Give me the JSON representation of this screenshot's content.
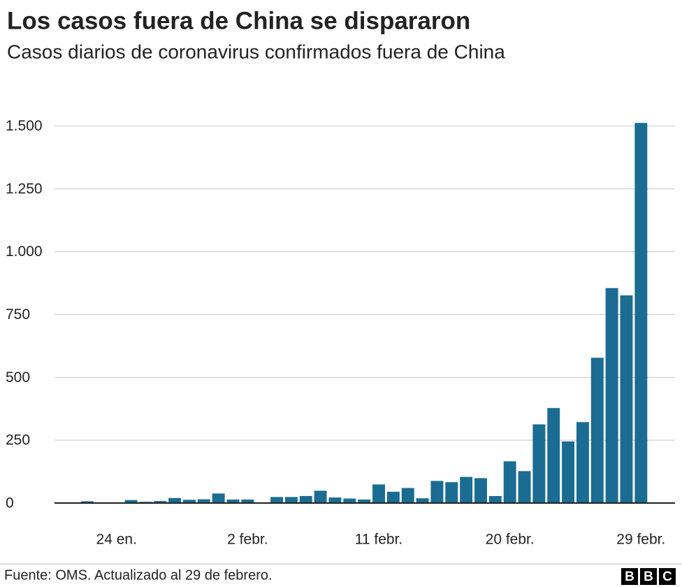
{
  "chart_data": {
    "type": "bar",
    "title": "Los casos fuera de China se dispararon",
    "subtitle": "Casos diarios de coronavirus confirmados fuera de China",
    "categories": [
      null,
      null,
      "24 en.",
      null,
      null,
      null,
      null,
      null,
      null,
      null,
      null,
      "2 febr.",
      null,
      null,
      null,
      null,
      null,
      null,
      null,
      null,
      "11 febr.",
      null,
      null,
      null,
      null,
      null,
      null,
      null,
      null,
      "20 febr.",
      null,
      null,
      null,
      null,
      null,
      null,
      null,
      null,
      "29 febr."
    ],
    "values": [
      7,
      3,
      2,
      12,
      5,
      8,
      20,
      13,
      15,
      38,
      14,
      14,
      0,
      24,
      24,
      28,
      49,
      22,
      18,
      14,
      74,
      45,
      60,
      19,
      88,
      83,
      104,
      99,
      28,
      166,
      127,
      313,
      378,
      245,
      322,
      578,
      855,
      826,
      1512
    ],
    "color": "#1b6c93",
    "ylim": [
      0,
      1500
    ],
    "yticks": [
      0,
      250,
      500,
      750,
      {
        "value": 1000,
        "label": "1.000"
      },
      {
        "value": 1250,
        "label": "1.250"
      },
      {
        "value": 1500,
        "label": "1.500"
      }
    ],
    "grid": true,
    "source": "Fuente: OMS. Actualizado al 29 de febrero.",
    "logo": [
      "B",
      "B",
      "C"
    ]
  }
}
